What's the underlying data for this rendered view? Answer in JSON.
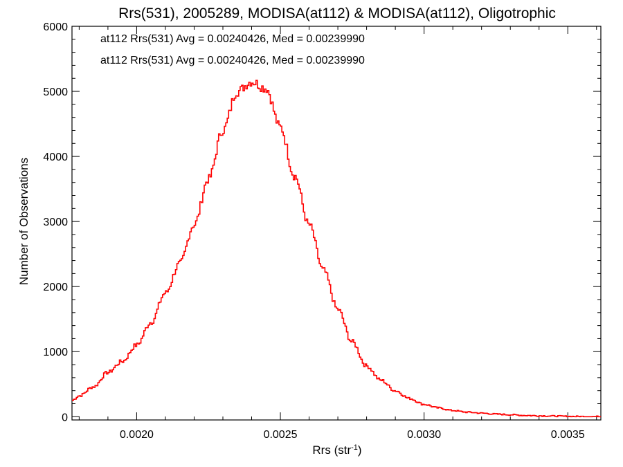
{
  "chart_data": {
    "type": "histogram-step",
    "title": "Rrs(531), 2005289, MODISA(at112) & MODISA(at112), Oligotrophic",
    "xlabel": "Rrs (str",
    "xlabel_sup": "-1",
    "xlabel_close": ")",
    "ylabel": "Number of Observations",
    "xlim": [
      0.001775,
      0.003615
    ],
    "ylim": [
      -50,
      6000
    ],
    "xticks": [
      0.002,
      0.0025,
      0.003,
      0.0035
    ],
    "xtick_labels": [
      "0.0020",
      "0.0025",
      "0.0030",
      "0.0035"
    ],
    "xminor_step": 0.0001,
    "yticks": [
      0,
      1000,
      2000,
      3000,
      4000,
      5000,
      6000
    ],
    "ytick_labels": [
      "0",
      "1000",
      "2000",
      "3000",
      "4000",
      "5000",
      "6000"
    ],
    "yminor_step": 200,
    "grid": false,
    "annotations": [
      {
        "text": "at112 Rrs(531) Avg = 0.00240426, Med = 0.00239990",
        "color": "#000000"
      },
      {
        "text": "at112 Rrs(531) Avg = 0.00240426, Med = 0.00239990",
        "color": "#ff0000"
      }
    ],
    "series": [
      {
        "color": "#ff0000",
        "x": [
          0.001775,
          0.0018,
          0.00185,
          0.0019,
          0.00195,
          0.002,
          0.00205,
          0.0021,
          0.00215,
          0.0022,
          0.00225,
          0.0023,
          0.00235,
          0.0024,
          0.00245,
          0.0025,
          0.00255,
          0.0026,
          0.00265,
          0.0027,
          0.00275,
          0.0028,
          0.00285,
          0.0029,
          0.00295,
          0.003,
          0.00305,
          0.0031,
          0.00315,
          0.0032,
          0.00325,
          0.0033,
          0.00335,
          0.0034,
          0.00345,
          0.0035,
          0.00355,
          0.0036,
          0.003615
        ],
        "y": [
          250,
          320,
          460,
          680,
          850,
          1100,
          1450,
          1900,
          2350,
          2950,
          3650,
          4400,
          5000,
          5150,
          5050,
          4450,
          3700,
          2950,
          2250,
          1650,
          1150,
          780,
          560,
          400,
          280,
          190,
          135,
          95,
          70,
          55,
          40,
          30,
          20,
          15,
          10,
          5,
          3,
          2,
          1
        ]
      }
    ]
  }
}
